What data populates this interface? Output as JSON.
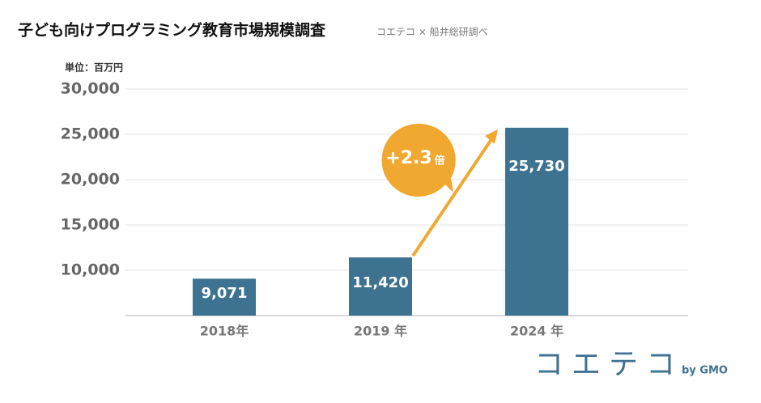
{
  "chart_data": {
    "type": "bar",
    "title": "子ども向けプログラミング教育市場規模調査",
    "subtitle": "コエテコ × 船井総研調べ",
    "unit_label": "単位：百万円",
    "categories": [
      "2018年",
      "2019 年",
      "2024 年"
    ],
    "values": [
      9071,
      11420,
      25730
    ],
    "value_labels": [
      "9,071",
      "11,420",
      "25,730"
    ],
    "color": "#3d7290",
    "ylim": [
      5000,
      30000
    ],
    "yticks": [
      {
        "value": 10000,
        "label": "10,000"
      },
      {
        "value": 15000,
        "label": "15,000"
      },
      {
        "value": 20000,
        "label": "20,000"
      },
      {
        "value": 25000,
        "label": "25,000"
      },
      {
        "value": 30000,
        "label": "30,000"
      }
    ],
    "grid": true,
    "annotation": {
      "text": "+2.3",
      "unit": "倍",
      "color": "#f0a830"
    },
    "logo": {
      "text": "コエテコ",
      "by": "by GMO"
    }
  }
}
